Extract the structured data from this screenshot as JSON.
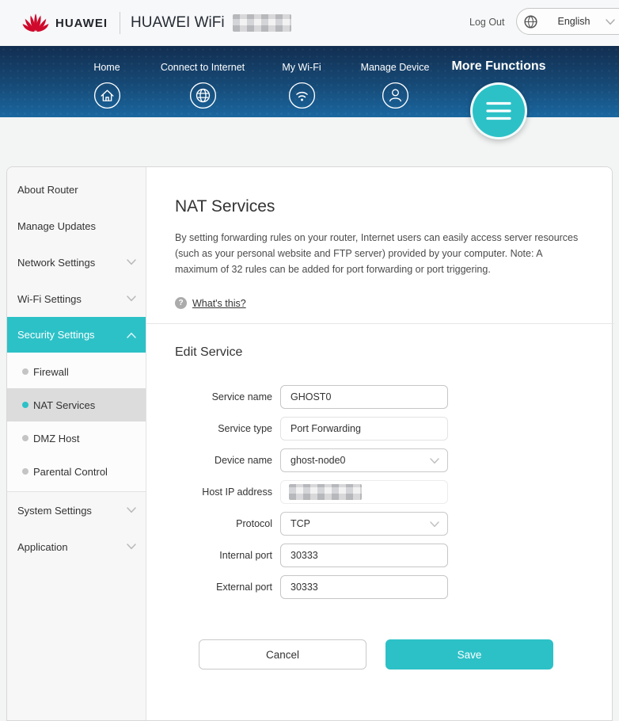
{
  "header": {
    "brand": "HUAWEI",
    "product": "HUAWEI WiFi",
    "model_redacted": true,
    "logout_label": "Log Out",
    "language": "English"
  },
  "nav": {
    "items": [
      {
        "label": "Home",
        "icon": "home-icon",
        "active": false
      },
      {
        "label": "Connect to Internet",
        "icon": "internet-globe-icon",
        "active": false
      },
      {
        "label": "My Wi-Fi",
        "icon": "wifi-icon",
        "active": false
      },
      {
        "label": "Manage Device",
        "icon": "person-icon",
        "active": false
      },
      {
        "label": "More Functions",
        "icon": "menu-icon",
        "active": true
      }
    ]
  },
  "sidebar": {
    "items": [
      {
        "type": "item",
        "label": "About Router"
      },
      {
        "type": "item",
        "label": "Manage Updates"
      },
      {
        "type": "item",
        "label": "Network Settings",
        "chevron": "down"
      },
      {
        "type": "item",
        "label": "Wi-Fi Settings",
        "chevron": "down"
      },
      {
        "type": "item",
        "label": "Security Settings",
        "chevron": "up",
        "active": true
      },
      {
        "type": "sub",
        "label": "Firewall"
      },
      {
        "type": "sub",
        "label": "NAT Services",
        "selected": true
      },
      {
        "type": "sub",
        "label": "DMZ Host"
      },
      {
        "type": "sub",
        "label": "Parental Control"
      },
      {
        "type": "divider"
      },
      {
        "type": "item",
        "label": "System Settings",
        "chevron": "down"
      },
      {
        "type": "item",
        "label": "Application",
        "chevron": "down"
      }
    ]
  },
  "main": {
    "title": "NAT Services",
    "description": "By setting forwarding rules on your router, Internet users can easily access server resources (such as your personal website and FTP server) provided by your computer. Note: A maximum of 32 rules can be added for port forwarding or port triggering.",
    "whats_this_label": "What's this?",
    "section_title": "Edit Service",
    "form": {
      "fields": [
        {
          "label": "Service name",
          "value": "GHOST0",
          "type": "text"
        },
        {
          "label": "Service type",
          "value": "Port Forwarding",
          "type": "readonly"
        },
        {
          "label": "Device name",
          "value": "ghost-node0",
          "type": "select"
        },
        {
          "label": "Host IP address",
          "value": "",
          "type": "redacted",
          "redacted": true
        },
        {
          "label": "Protocol",
          "value": "TCP",
          "type": "select"
        },
        {
          "label": "Internal port",
          "value": "30333",
          "type": "text"
        },
        {
          "label": "External port",
          "value": "30333",
          "type": "text"
        }
      ],
      "cancel_label": "Cancel",
      "save_label": "Save"
    }
  },
  "colors": {
    "accent_teal": "#2cc1c7",
    "nav_top": "#122e50",
    "nav_bottom": "#1a67a0",
    "huawei_red": "#cf0a2c"
  }
}
